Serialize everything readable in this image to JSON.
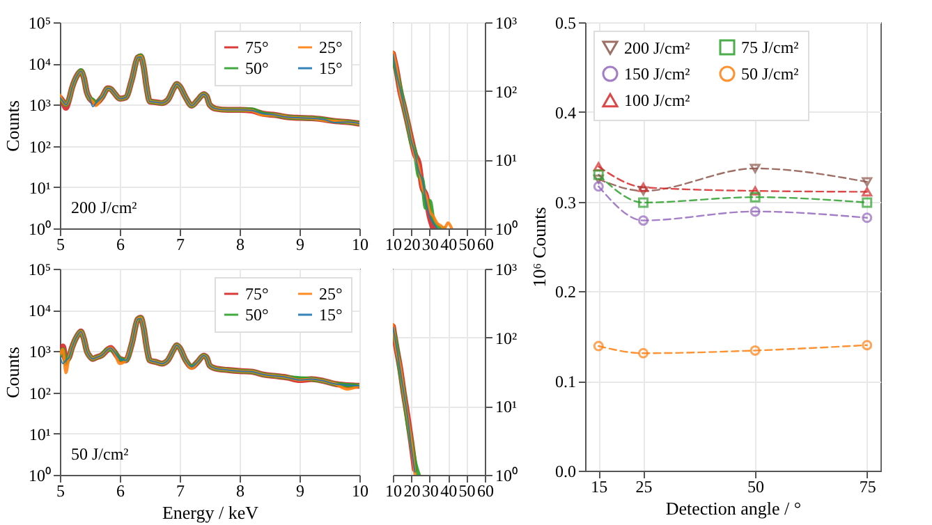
{
  "chart_data": [
    {
      "type": "line",
      "ylabel": "Counts",
      "annotations": [
        "200 J/cm²"
      ],
      "log": "y",
      "grid": true,
      "legend": "top right",
      "xlim": [
        5,
        10
      ],
      "xticks": [
        5,
        6,
        7,
        8,
        9,
        10
      ],
      "ylim": [
        1,
        100000
      ],
      "yticks": [
        {
          "value": 1,
          "label": "10⁰"
        },
        {
          "value": 10,
          "label": "10¹"
        },
        {
          "value": 100,
          "label": "10²"
        },
        {
          "value": 1000,
          "label": "10³"
        },
        {
          "value": 10000,
          "label": "10⁴"
        },
        {
          "value": 100000,
          "label": "10⁵"
        }
      ],
      "x": [
        5.0,
        5.05,
        5.1,
        5.15,
        5.2,
        5.3,
        5.35,
        5.4,
        5.45,
        5.5,
        5.55,
        5.6,
        5.7,
        5.8,
        5.85,
        5.9,
        6.0,
        6.1,
        6.2,
        6.3,
        6.35,
        6.4,
        6.45,
        6.5,
        6.6,
        6.7,
        6.8,
        6.9,
        6.95,
        7.0,
        7.1,
        7.2,
        7.3,
        7.4,
        7.45,
        7.5,
        7.6,
        7.8,
        8.0,
        8.2,
        8.4,
        8.6,
        8.8,
        9.0,
        9.2,
        9.4,
        9.6,
        9.8,
        10.0
      ],
      "series": [
        {
          "name": "75°",
          "color": "#d62728",
          "values": [
            1500,
            1200,
            850,
            1300,
            2500,
            5500,
            6500,
            4500,
            2000,
            1400,
            1200,
            1100,
            1500,
            2500,
            2400,
            2000,
            1400,
            1500,
            4000,
            14000,
            15000,
            8000,
            2500,
            1200,
            1150,
            1100,
            1300,
            2500,
            3200,
            2800,
            1500,
            950,
            1300,
            1800,
            1600,
            1000,
            800,
            750,
            750,
            720,
            600,
            560,
            500,
            480,
            470,
            440,
            400,
            380,
            350
          ]
        },
        {
          "name": "50°",
          "color": "#2ca02c",
          "values": [
            1500,
            1200,
            1000,
            1300,
            2500,
            5500,
            6800,
            4500,
            2000,
            1400,
            1300,
            1100,
            1500,
            2500,
            2400,
            2000,
            1400,
            1500,
            4000,
            14000,
            15500,
            8000,
            2500,
            1200,
            1150,
            1100,
            1300,
            2500,
            3200,
            2800,
            1500,
            950,
            1300,
            1800,
            1600,
            1000,
            800,
            750,
            750,
            760,
            600,
            560,
            500,
            480,
            470,
            440,
            400,
            380,
            350
          ]
        },
        {
          "name": "25°",
          "color": "#ff7f0e",
          "values": [
            1700,
            1200,
            1000,
            1300,
            2500,
            5500,
            6500,
            4500,
            2000,
            1400,
            1200,
            950,
            1500,
            2500,
            2400,
            2000,
            1400,
            1500,
            4000,
            14000,
            15000,
            8000,
            2500,
            1200,
            1150,
            1100,
            1300,
            2500,
            3200,
            2800,
            1500,
            950,
            1300,
            1800,
            1600,
            1000,
            800,
            750,
            750,
            720,
            560,
            560,
            500,
            480,
            470,
            420,
            400,
            380,
            350
          ]
        },
        {
          "name": "15°",
          "color": "#1f77b4",
          "values": [
            1500,
            1200,
            1000,
            1300,
            2500,
            5500,
            6500,
            4500,
            2000,
            1400,
            900,
            1100,
            1500,
            2500,
            2400,
            2000,
            1400,
            1500,
            4000,
            14000,
            14500,
            8000,
            2500,
            1200,
            1150,
            1100,
            1300,
            2500,
            3200,
            2800,
            1500,
            950,
            1300,
            1800,
            1600,
            1000,
            800,
            750,
            750,
            720,
            600,
            560,
            500,
            480,
            470,
            440,
            370,
            380,
            350
          ]
        }
      ]
    },
    {
      "type": "line",
      "log": "y",
      "grid": true,
      "xlim": [
        10,
        60
      ],
      "xticks": [
        10,
        20,
        30,
        40,
        50,
        60
      ],
      "ylim": [
        1,
        1000
      ],
      "yticks": [
        {
          "value": 1,
          "label": "10⁰"
        },
        {
          "value": 10,
          "label": "10¹"
        },
        {
          "value": 100,
          "label": "10²"
        },
        {
          "value": 1000,
          "label": "10³"
        }
      ],
      "series": [
        {
          "color": "#d62728",
          "x": [
            10,
            12,
            14,
            16,
            18,
            20,
            22,
            24,
            26,
            28,
            30,
            32
          ],
          "values": [
            350,
            200,
            100,
            60,
            35,
            20,
            12,
            9,
            4,
            3,
            1.5,
            1
          ]
        },
        {
          "color": "#2ca02c",
          "x": [
            10,
            12,
            14,
            16,
            18,
            20,
            22,
            24,
            26,
            28,
            30,
            32,
            34,
            36,
            38
          ],
          "values": [
            330,
            190,
            110,
            60,
            35,
            18,
            13,
            6,
            5,
            2,
            2.5,
            1.3,
            1.1,
            1,
            1
          ]
        },
        {
          "color": "#ff7f0e",
          "x": [
            10,
            12,
            14,
            16,
            18,
            20,
            22,
            24,
            26,
            28,
            30,
            32,
            34,
            36,
            38,
            40,
            42
          ],
          "values": [
            370,
            215,
            92,
            60,
            35,
            20,
            11,
            8,
            4,
            3,
            1.8,
            1.5,
            1.2,
            1.1,
            1,
            1.2,
            1
          ]
        },
        {
          "color": "#1f77b4",
          "x": [
            10,
            12,
            14,
            16,
            18,
            20,
            22,
            24,
            26,
            28,
            30,
            32,
            34
          ],
          "values": [
            340,
            180,
            105,
            60,
            35,
            19,
            12,
            7,
            5,
            2.5,
            1.5,
            1.2,
            1
          ]
        }
      ]
    },
    {
      "type": "line",
      "xlabel": "Energy / keV",
      "ylabel": "Counts",
      "annotations": [
        "50 J/cm²"
      ],
      "log": "y",
      "grid": true,
      "legend": "top right",
      "xlim": [
        5,
        10
      ],
      "xticks": [
        5,
        6,
        7,
        8,
        9,
        10
      ],
      "ylim": [
        1,
        100000
      ],
      "yticks": [
        {
          "value": 1,
          "label": "10⁰"
        },
        {
          "value": 10,
          "label": "10¹"
        },
        {
          "value": 100,
          "label": "10²"
        },
        {
          "value": 1000,
          "label": "10³"
        },
        {
          "value": 10000,
          "label": "10⁴"
        },
        {
          "value": 100000,
          "label": "10⁵"
        }
      ],
      "x": [
        5.0,
        5.05,
        5.1,
        5.15,
        5.2,
        5.3,
        5.35,
        5.4,
        5.45,
        5.5,
        5.55,
        5.6,
        5.7,
        5.8,
        5.85,
        5.9,
        6.0,
        6.1,
        6.2,
        6.3,
        6.35,
        6.4,
        6.45,
        6.5,
        6.6,
        6.7,
        6.8,
        6.9,
        6.95,
        7.0,
        7.1,
        7.2,
        7.3,
        7.4,
        7.45,
        7.5,
        7.6,
        7.8,
        8.0,
        8.2,
        8.4,
        8.6,
        8.8,
        9.0,
        9.2,
        9.4,
        9.6,
        9.8,
        10.0
      ],
      "series": [
        {
          "name": "75°",
          "color": "#d62728",
          "values": [
            800,
            1300,
            600,
            700,
            1200,
            2500,
            3000,
            2000,
            1000,
            750,
            650,
            700,
            800,
            1100,
            1200,
            1000,
            650,
            600,
            1500,
            6000,
            6500,
            3500,
            1200,
            600,
            550,
            500,
            600,
            1100,
            1400,
            1200,
            600,
            420,
            550,
            780,
            700,
            450,
            380,
            350,
            330,
            320,
            270,
            250,
            230,
            200,
            210,
            190,
            160,
            150,
            145
          ]
        },
        {
          "name": "50°",
          "color": "#2ca02c",
          "values": [
            800,
            1100,
            500,
            700,
            1200,
            2500,
            3000,
            2000,
            1000,
            750,
            650,
            700,
            800,
            1100,
            1100,
            1000,
            650,
            600,
            1500,
            6000,
            6500,
            3500,
            1200,
            600,
            550,
            500,
            600,
            1100,
            1400,
            1200,
            600,
            420,
            550,
            780,
            700,
            450,
            380,
            350,
            330,
            320,
            270,
            250,
            230,
            220,
            210,
            190,
            160,
            150,
            145
          ]
        },
        {
          "name": "25°",
          "color": "#ff7f0e",
          "values": [
            800,
            1100,
            300,
            700,
            1200,
            2500,
            3000,
            2000,
            1000,
            750,
            650,
            700,
            800,
            1100,
            1200,
            1000,
            500,
            600,
            1500,
            6000,
            6500,
            3500,
            1200,
            600,
            550,
            500,
            600,
            1100,
            1400,
            1200,
            600,
            380,
            550,
            780,
            700,
            450,
            380,
            350,
            330,
            320,
            270,
            250,
            230,
            200,
            210,
            190,
            160,
            120,
            145
          ]
        },
        {
          "name": "15°",
          "color": "#1f77b4",
          "values": [
            800,
            500,
            600,
            700,
            1200,
            2500,
            3000,
            2000,
            1000,
            750,
            650,
            700,
            800,
            1100,
            1200,
            1000,
            650,
            600,
            1500,
            6000,
            6200,
            3500,
            1200,
            600,
            550,
            500,
            600,
            1100,
            1400,
            1200,
            600,
            420,
            550,
            780,
            700,
            450,
            380,
            350,
            330,
            320,
            270,
            250,
            230,
            200,
            210,
            190,
            160,
            150,
            145
          ]
        }
      ]
    },
    {
      "type": "line",
      "log": "y",
      "grid": true,
      "xlim": [
        10,
        60
      ],
      "xticks": [
        10,
        20,
        30,
        40,
        50,
        60
      ],
      "ylim": [
        1,
        1000
      ],
      "yticks": [
        {
          "value": 1,
          "label": "10⁰"
        },
        {
          "value": 10,
          "label": "10¹"
        },
        {
          "value": 100,
          "label": "10²"
        },
        {
          "value": 1000,
          "label": "10³"
        }
      ],
      "series": [
        {
          "color": "#d62728",
          "x": [
            10,
            12,
            14,
            16,
            18,
            20,
            22
          ],
          "values": [
            145,
            70,
            35,
            15,
            7,
            3,
            1.2
          ]
        },
        {
          "color": "#2ca02c",
          "x": [
            10,
            12,
            14,
            16,
            18,
            20,
            22,
            24
          ],
          "values": [
            135,
            75,
            32,
            15,
            6,
            3,
            1.5,
            1
          ]
        },
        {
          "color": "#ff7f0e",
          "x": [
            10,
            12,
            14,
            16,
            18,
            20,
            22
          ],
          "values": [
            155,
            65,
            38,
            15,
            7,
            3,
            1
          ]
        },
        {
          "color": "#1f77b4",
          "x": [
            10,
            12,
            14,
            16,
            18,
            20,
            22
          ],
          "values": [
            140,
            72,
            33,
            15,
            7,
            2.5,
            1.1
          ]
        }
      ]
    },
    {
      "type": "line",
      "xlabel": "Detection angle / °",
      "ylabel": "10⁶ Counts",
      "grid": true,
      "legend": "top left",
      "line_style": "dashed",
      "xlim": [
        12,
        78
      ],
      "xticks": [
        15,
        25,
        50,
        75
      ],
      "ylim": [
        0,
        0.5
      ],
      "yticks": [
        {
          "value": 0,
          "label": "0.0"
        },
        {
          "value": 0.1,
          "label": "0.1"
        },
        {
          "value": 0.2,
          "label": "0.2"
        },
        {
          "value": 0.3,
          "label": "0.3"
        },
        {
          "value": 0.4,
          "label": "0.4"
        },
        {
          "value": 0.5,
          "label": "0.5"
        }
      ],
      "x": [
        15,
        25,
        50,
        75
      ],
      "series": [
        {
          "name": "200 J/cm²",
          "color": "#8c564b",
          "marker": "triangle-down",
          "values": [
            0.325,
            0.312,
            0.337,
            0.322
          ]
        },
        {
          "name": "150 J/cm²",
          "color": "#9467bd",
          "marker": "circle",
          "values": [
            0.317,
            0.279,
            0.289,
            0.282
          ]
        },
        {
          "name": "100 J/cm²",
          "color": "#d62728",
          "marker": "triangle-up",
          "values": [
            0.339,
            0.316,
            0.312,
            0.311
          ]
        },
        {
          "name": "75 J/cm²",
          "color": "#2ca02c",
          "marker": "square",
          "values": [
            0.33,
            0.299,
            0.305,
            0.299
          ]
        },
        {
          "name": "50 J/cm²",
          "color": "#ff7f0e",
          "marker": "circle",
          "values": [
            0.139,
            0.131,
            0.134,
            0.14
          ]
        }
      ]
    }
  ]
}
